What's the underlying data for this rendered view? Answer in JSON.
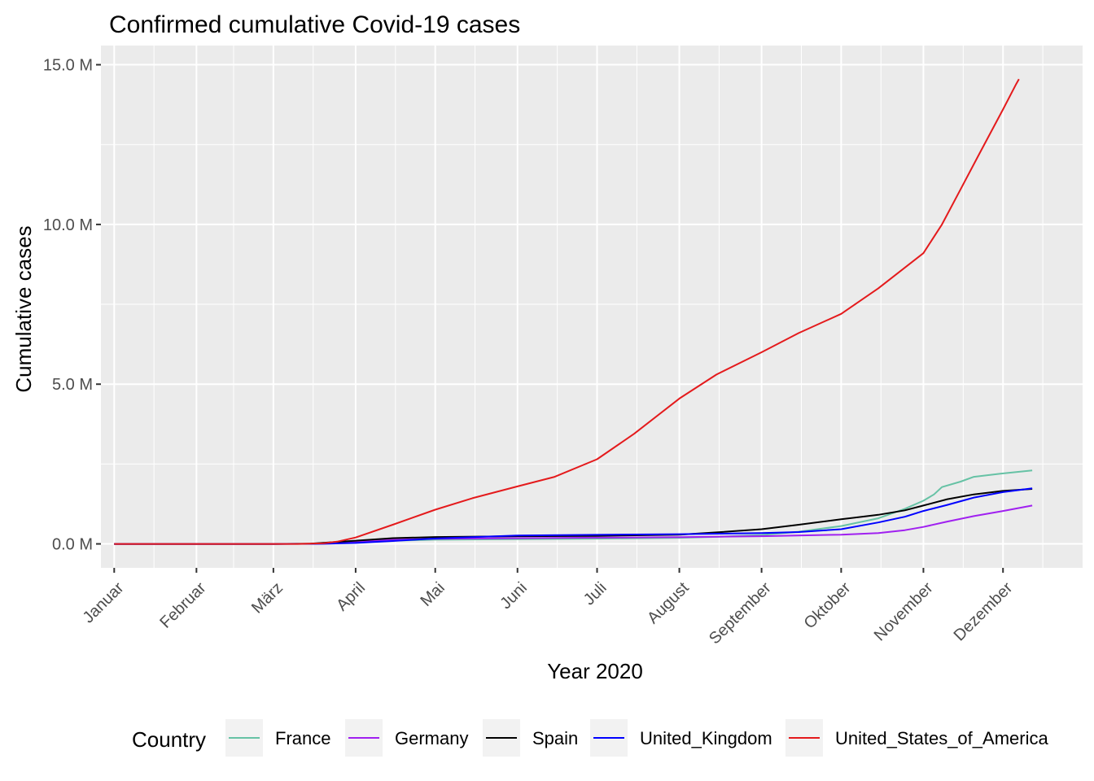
{
  "chart_data": {
    "type": "line",
    "title": "Confirmed cumulative Covid-19 cases",
    "xlabel": "Year 2020",
    "ylabel": "Cumulative cases",
    "xlim": [
      "2019-12-27",
      "2020-12-31"
    ],
    "ylim": [
      -0.75,
      15.6
    ],
    "y_unit": "M",
    "x_ticks": [
      {
        "date": "2020-01-01",
        "label": "Januar"
      },
      {
        "date": "2020-02-01",
        "label": "Februar"
      },
      {
        "date": "2020-03-01",
        "label": "März"
      },
      {
        "date": "2020-04-01",
        "label": "April"
      },
      {
        "date": "2020-05-01",
        "label": "Mai"
      },
      {
        "date": "2020-06-01",
        "label": "Juni"
      },
      {
        "date": "2020-07-01",
        "label": "Juli"
      },
      {
        "date": "2020-08-01",
        "label": "August"
      },
      {
        "date": "2020-09-01",
        "label": "September"
      },
      {
        "date": "2020-10-01",
        "label": "Oktober"
      },
      {
        "date": "2020-11-01",
        "label": "November"
      },
      {
        "date": "2020-12-01",
        "label": "Dezember"
      }
    ],
    "y_ticks": [
      {
        "value": 0,
        "label": "0.0 M"
      },
      {
        "value": 5,
        "label": "5.0 M"
      },
      {
        "value": 10,
        "label": "10.0 M"
      },
      {
        "value": 15,
        "label": "15.0 M"
      }
    ],
    "grid": true,
    "legend": {
      "title": "Country",
      "position": "bottom"
    },
    "colors": {
      "panel": "#ebebeb",
      "grid": "#ffffff",
      "tick": "#333333"
    },
    "series": [
      {
        "name": "France",
        "color": "#66c2a5",
        "points": [
          [
            "2020-01-01",
            0
          ],
          [
            "2020-03-01",
            0
          ],
          [
            "2020-03-15",
            0.005
          ],
          [
            "2020-04-01",
            0.05
          ],
          [
            "2020-04-15",
            0.1
          ],
          [
            "2020-05-01",
            0.13
          ],
          [
            "2020-06-01",
            0.15
          ],
          [
            "2020-07-01",
            0.165
          ],
          [
            "2020-08-01",
            0.19
          ],
          [
            "2020-08-15",
            0.22
          ],
          [
            "2020-09-01",
            0.28
          ],
          [
            "2020-09-15",
            0.38
          ],
          [
            "2020-10-01",
            0.56
          ],
          [
            "2020-10-15",
            0.8
          ],
          [
            "2020-10-25",
            1.1
          ],
          [
            "2020-11-01",
            1.35
          ],
          [
            "2020-11-05",
            1.55
          ],
          [
            "2020-11-08",
            1.78
          ],
          [
            "2020-11-15",
            1.95
          ],
          [
            "2020-11-20",
            2.1
          ],
          [
            "2020-11-30",
            2.2
          ],
          [
            "2020-12-06",
            2.25
          ],
          [
            "2020-12-12",
            2.3
          ]
        ]
      },
      {
        "name": "Germany",
        "color": "#a020f0",
        "points": [
          [
            "2020-01-01",
            0
          ],
          [
            "2020-03-01",
            0
          ],
          [
            "2020-03-15",
            0.005
          ],
          [
            "2020-04-01",
            0.07
          ],
          [
            "2020-04-15",
            0.13
          ],
          [
            "2020-05-01",
            0.16
          ],
          [
            "2020-06-01",
            0.18
          ],
          [
            "2020-07-01",
            0.195
          ],
          [
            "2020-08-01",
            0.21
          ],
          [
            "2020-09-01",
            0.24
          ],
          [
            "2020-10-01",
            0.29
          ],
          [
            "2020-10-15",
            0.34
          ],
          [
            "2020-10-25",
            0.43
          ],
          [
            "2020-11-01",
            0.53
          ],
          [
            "2020-11-10",
            0.7
          ],
          [
            "2020-11-20",
            0.87
          ],
          [
            "2020-12-01",
            1.03
          ],
          [
            "2020-12-12",
            1.2
          ]
        ]
      },
      {
        "name": "Spain",
        "color": "#000000",
        "points": [
          [
            "2020-01-01",
            0
          ],
          [
            "2020-03-01",
            0
          ],
          [
            "2020-03-15",
            0.007
          ],
          [
            "2020-04-01",
            0.1
          ],
          [
            "2020-04-15",
            0.18
          ],
          [
            "2020-05-01",
            0.215
          ],
          [
            "2020-06-01",
            0.24
          ],
          [
            "2020-07-01",
            0.25
          ],
          [
            "2020-08-01",
            0.29
          ],
          [
            "2020-08-15",
            0.36
          ],
          [
            "2020-09-01",
            0.46
          ],
          [
            "2020-09-15",
            0.6
          ],
          [
            "2020-10-01",
            0.77
          ],
          [
            "2020-10-15",
            0.91
          ],
          [
            "2020-10-25",
            1.05
          ],
          [
            "2020-11-01",
            1.2
          ],
          [
            "2020-11-10",
            1.4
          ],
          [
            "2020-11-20",
            1.55
          ],
          [
            "2020-12-01",
            1.66
          ],
          [
            "2020-12-12",
            1.72
          ]
        ]
      },
      {
        "name": "United_Kingdom",
        "color": "#0000ff",
        "points": [
          [
            "2020-01-01",
            0
          ],
          [
            "2020-03-01",
            0
          ],
          [
            "2020-03-20",
            0.004
          ],
          [
            "2020-04-01",
            0.03
          ],
          [
            "2020-04-15",
            0.09
          ],
          [
            "2020-05-01",
            0.17
          ],
          [
            "2020-06-01",
            0.26
          ],
          [
            "2020-07-01",
            0.285
          ],
          [
            "2020-08-01",
            0.305
          ],
          [
            "2020-08-15",
            0.32
          ],
          [
            "2020-09-01",
            0.34
          ],
          [
            "2020-09-15",
            0.37
          ],
          [
            "2020-10-01",
            0.46
          ],
          [
            "2020-10-15",
            0.67
          ],
          [
            "2020-10-25",
            0.85
          ],
          [
            "2020-11-01",
            1.03
          ],
          [
            "2020-11-10",
            1.22
          ],
          [
            "2020-11-20",
            1.45
          ],
          [
            "2020-12-01",
            1.62
          ],
          [
            "2020-12-12",
            1.74
          ]
        ]
      },
      {
        "name": "United_States_of_America",
        "color": "#e41a1c",
        "points": [
          [
            "2020-01-01",
            0
          ],
          [
            "2020-03-10",
            0
          ],
          [
            "2020-03-20",
            0.02
          ],
          [
            "2020-03-25",
            0.07
          ],
          [
            "2020-04-01",
            0.2
          ],
          [
            "2020-04-15",
            0.6
          ],
          [
            "2020-05-01",
            1.07
          ],
          [
            "2020-05-15",
            1.43
          ],
          [
            "2020-06-01",
            1.8
          ],
          [
            "2020-06-15",
            2.1
          ],
          [
            "2020-07-01",
            2.65
          ],
          [
            "2020-07-15",
            3.45
          ],
          [
            "2020-08-01",
            4.55
          ],
          [
            "2020-08-15",
            5.3
          ],
          [
            "2020-09-01",
            6.0
          ],
          [
            "2020-09-15",
            6.6
          ],
          [
            "2020-10-01",
            7.2
          ],
          [
            "2020-10-15",
            8.0
          ],
          [
            "2020-11-01",
            9.1
          ],
          [
            "2020-11-08",
            10.0
          ],
          [
            "2020-11-15",
            11.1
          ],
          [
            "2020-11-22",
            12.2
          ],
          [
            "2020-12-01",
            13.6
          ],
          [
            "2020-12-06",
            14.4
          ],
          [
            "2020-12-07",
            14.55
          ]
        ]
      }
    ]
  }
}
